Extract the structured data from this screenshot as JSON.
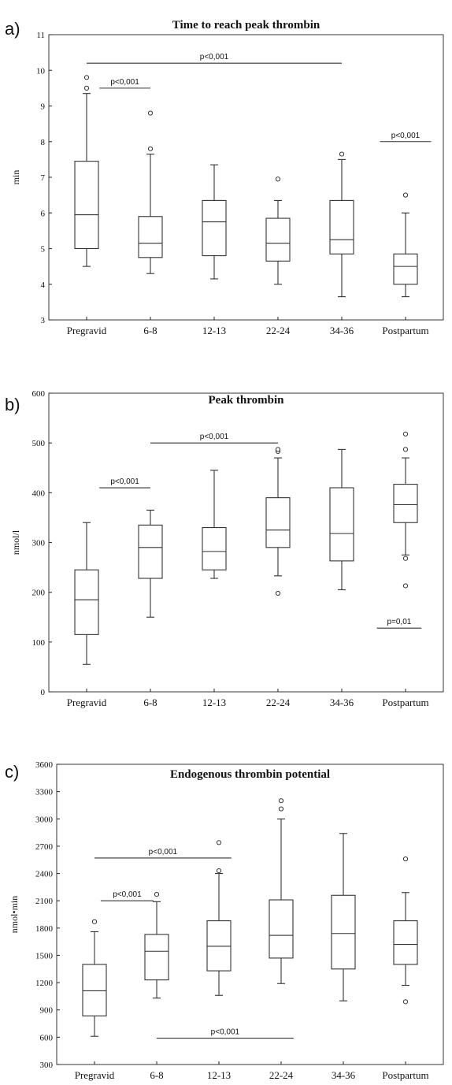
{
  "chart_data": [
    {
      "type": "box",
      "panel_label": "a)",
      "title": "Time to reach peak thrombin",
      "ylabel": "min",
      "xlabel": "",
      "ylim": [
        3,
        11
      ],
      "yticks": [
        "3",
        "4",
        "5",
        "6",
        "7",
        "8",
        "9",
        "10",
        "11"
      ],
      "categories": [
        "Pregravid",
        "6-8",
        "12-13",
        "22-24",
        "34-36",
        "Postpartum"
      ],
      "boxes": [
        {
          "min": 4.5,
          "q1": 5.0,
          "median": 5.95,
          "q3": 7.45,
          "max": 9.35,
          "outliers": [
            9.5,
            9.8
          ]
        },
        {
          "min": 4.3,
          "q1": 4.75,
          "median": 5.15,
          "q3": 5.9,
          "max": 7.65,
          "outliers": [
            7.8,
            8.8
          ]
        },
        {
          "min": 4.15,
          "q1": 4.8,
          "median": 5.75,
          "q3": 6.35,
          "max": 7.35,
          "outliers": []
        },
        {
          "min": 4.0,
          "q1": 4.65,
          "median": 5.15,
          "q3": 5.85,
          "max": 6.35,
          "outliers": [
            6.95
          ]
        },
        {
          "min": 3.65,
          "q1": 4.85,
          "median": 5.25,
          "q3": 6.35,
          "max": 7.5,
          "outliers": [
            7.65
          ]
        },
        {
          "min": 3.65,
          "q1": 4.0,
          "median": 4.5,
          "q3": 4.85,
          "max": 6.0,
          "outliers": [
            6.5
          ]
        }
      ],
      "annotations": [
        {
          "text": "p<0,001",
          "from": 0,
          "to": 4,
          "y": 10.2
        },
        {
          "text": "p<0,001",
          "from": 0.2,
          "to": 1.0,
          "y": 9.5
        },
        {
          "text": "p<0,001",
          "from": 4.6,
          "to": 5.4,
          "y": 8.0
        }
      ]
    },
    {
      "type": "box",
      "panel_label": "b)",
      "title": "Peak thrombin",
      "ylabel": "nmol/l",
      "xlabel": "",
      "ylim": [
        0,
        600
      ],
      "yticks": [
        "0",
        "100",
        "200",
        "300",
        "400",
        "500",
        "600"
      ],
      "categories": [
        "Pregravid",
        "6-8",
        "12-13",
        "22-24",
        "34-36",
        "Postpartum"
      ],
      "boxes": [
        {
          "min": 55,
          "q1": 115,
          "median": 185,
          "q3": 245,
          "max": 340,
          "outliers": []
        },
        {
          "min": 150,
          "q1": 228,
          "median": 290,
          "q3": 335,
          "max": 365,
          "outliers": []
        },
        {
          "min": 228,
          "q1": 245,
          "median": 282,
          "q3": 330,
          "max": 445,
          "outliers": []
        },
        {
          "min": 233,
          "q1": 290,
          "median": 325,
          "q3": 390,
          "max": 470,
          "outliers": [
            198,
            483,
            487
          ]
        },
        {
          "min": 205,
          "q1": 263,
          "median": 318,
          "q3": 410,
          "max": 487,
          "outliers": []
        },
        {
          "min": 275,
          "q1": 340,
          "median": 376,
          "q3": 417,
          "max": 470,
          "outliers": [
            213,
            268,
            487,
            518
          ]
        }
      ],
      "annotations": [
        {
          "text": "p<0,001",
          "from": 0.2,
          "to": 1.0,
          "y": 410
        },
        {
          "text": "p<0,001",
          "from": 1.0,
          "to": 3.0,
          "y": 500
        },
        {
          "text": "p=0,01",
          "from": 4.55,
          "to": 5.25,
          "y": 128
        }
      ]
    },
    {
      "type": "box",
      "panel_label": "c)",
      "title": "Endogenous thrombin potential",
      "ylabel": "nmol•min",
      "xlabel": "",
      "ylim": [
        300,
        3600
      ],
      "yticks": [
        "300",
        "600",
        "900",
        "1200",
        "1500",
        "1800",
        "2100",
        "2400",
        "2700",
        "3000",
        "3300",
        "3600"
      ],
      "categories": [
        "Pregravid",
        "6-8",
        "12-13",
        "22-24",
        "34-36",
        "Postpartum"
      ],
      "boxes": [
        {
          "min": 610,
          "q1": 835,
          "median": 1110,
          "q3": 1400,
          "max": 1760,
          "outliers": [
            1870
          ]
        },
        {
          "min": 1030,
          "q1": 1230,
          "median": 1545,
          "q3": 1730,
          "max": 2090,
          "outliers": [
            2170
          ]
        },
        {
          "min": 1060,
          "q1": 1330,
          "median": 1600,
          "q3": 1880,
          "max": 2400,
          "outliers": [
            2430,
            2740
          ]
        },
        {
          "min": 1190,
          "q1": 1470,
          "median": 1720,
          "q3": 2110,
          "max": 3000,
          "outliers": [
            3110,
            3200
          ]
        },
        {
          "min": 1000,
          "q1": 1350,
          "median": 1740,
          "q3": 2160,
          "max": 2840,
          "outliers": []
        },
        {
          "min": 1170,
          "q1": 1400,
          "median": 1620,
          "q3": 1880,
          "max": 2190,
          "outliers": [
            990,
            2560
          ]
        }
      ],
      "annotations": [
        {
          "text": "p<0,001",
          "from": 0,
          "to": 2.2,
          "y": 2570
        },
        {
          "text": "p<0,001",
          "from": 0.1,
          "to": 0.95,
          "y": 2100
        },
        {
          "text": "p<0,001",
          "from": 1.0,
          "to": 3.2,
          "y": 590
        }
      ]
    }
  ]
}
